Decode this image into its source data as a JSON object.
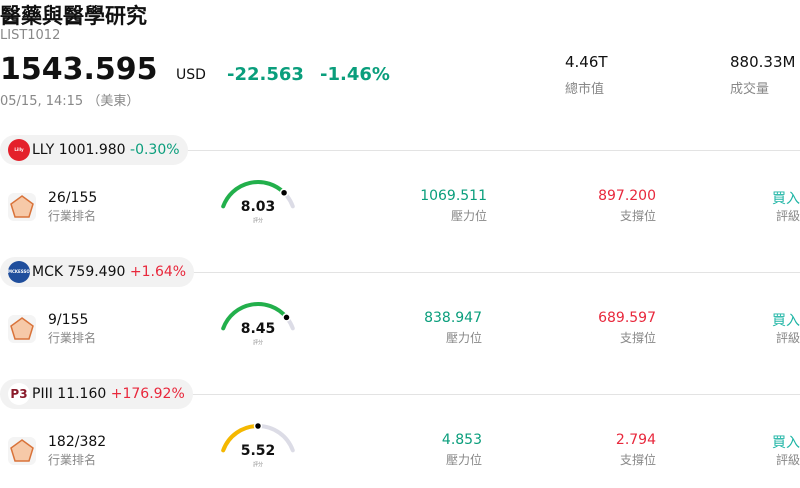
{
  "header": {
    "title": "醫藥與醫學研究",
    "code": "LIST1012",
    "price": "1543.595",
    "currency": "USD",
    "change": "-22.563",
    "change_pct": "-1.46%",
    "timestamp": "05/15, 14:15 （美東）",
    "stats": [
      {
        "value": "4.46T",
        "label": "總市值"
      },
      {
        "value": "880.33M",
        "label": "成交量"
      }
    ]
  },
  "stocks": [
    {
      "logo": "Lilly",
      "logo_color": "#e4202b",
      "ticker": "LLY",
      "price": "1001.980",
      "change": "-0.30%",
      "change_color": "#0a9e7c",
      "rank": "26/155",
      "rank_label": "行業排名",
      "score": "8.03",
      "score_label": "評分",
      "gauge_color": "#22b04b",
      "resistance": "1069.511",
      "resistance_label": "壓力位",
      "support": "897.200",
      "support_label": "支撐位",
      "rating": "買入",
      "rating_label": "評級"
    },
    {
      "logo": "MCKESSON",
      "logo_color": "#1f4e9c",
      "ticker": "MCK",
      "price": "759.490",
      "change": "+1.64%",
      "change_color": "#e8283c",
      "rank": "9/155",
      "rank_label": "行業排名",
      "score": "8.45",
      "score_label": "評分",
      "gauge_color": "#22b04b",
      "resistance": "838.947",
      "resistance_label": "壓力位",
      "support": "689.597",
      "support_label": "支撐位",
      "rating": "買入",
      "rating_label": "評級"
    },
    {
      "logo": "P3",
      "logo_color": "#ffffff",
      "ticker": "PIII",
      "price": "11.160",
      "change": "+176.92%",
      "change_color": "#e8283c",
      "rank": "182/382",
      "rank_label": "行業排名",
      "score": "5.52",
      "score_label": "評分",
      "gauge_color": "#f5b800",
      "resistance": "4.853",
      "resistance_label": "壓力位",
      "support": "2.794",
      "support_label": "支撐位",
      "rating": "買入",
      "rating_label": "評級"
    }
  ]
}
